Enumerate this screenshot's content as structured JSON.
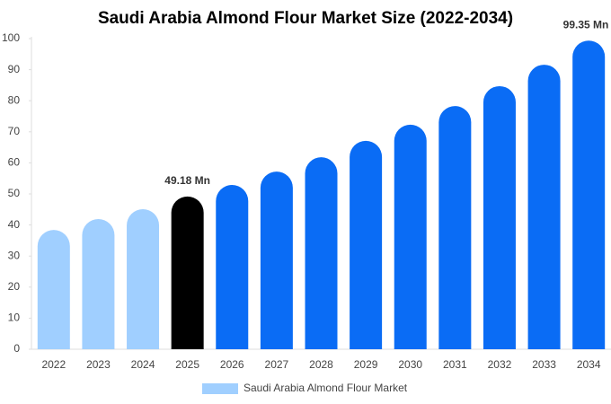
{
  "chart_data": {
    "type": "bar",
    "title": "Saudi Arabia Almond Flour Market Size (2022-2034)",
    "categories": [
      "2022",
      "2023",
      "2024",
      "2025",
      "2026",
      "2027",
      "2028",
      "2029",
      "2030",
      "2031",
      "2032",
      "2033",
      "2034"
    ],
    "series": [
      {
        "name": "Saudi Arabia Almond Flour Market",
        "color": "#a0cfff",
        "colors": [
          "#a0cfff",
          "#a0cfff",
          "#a0cfff",
          "#000000",
          "#0a6cf5",
          "#0a6cf5",
          "#0a6cf5",
          "#0a6cf5",
          "#0a6cf5",
          "#0a6cf5",
          "#0a6cf5",
          "#0a6cf5",
          "#0a6cf5"
        ],
        "values": [
          38.4,
          41.9,
          45.1,
          49.18,
          52.9,
          57.2,
          61.8,
          67.1,
          72.3,
          78.3,
          84.7,
          91.6,
          99.35
        ],
        "value_labels": [
          null,
          null,
          null,
          "49.18 Mn",
          null,
          null,
          null,
          null,
          null,
          null,
          null,
          null,
          "99.35 Mn"
        ]
      }
    ],
    "ylim": [
      0,
      100
    ],
    "yticks": [
      0,
      10,
      20,
      30,
      40,
      50,
      60,
      70,
      80,
      90,
      100
    ],
    "grid": false,
    "legend": "bottom"
  }
}
